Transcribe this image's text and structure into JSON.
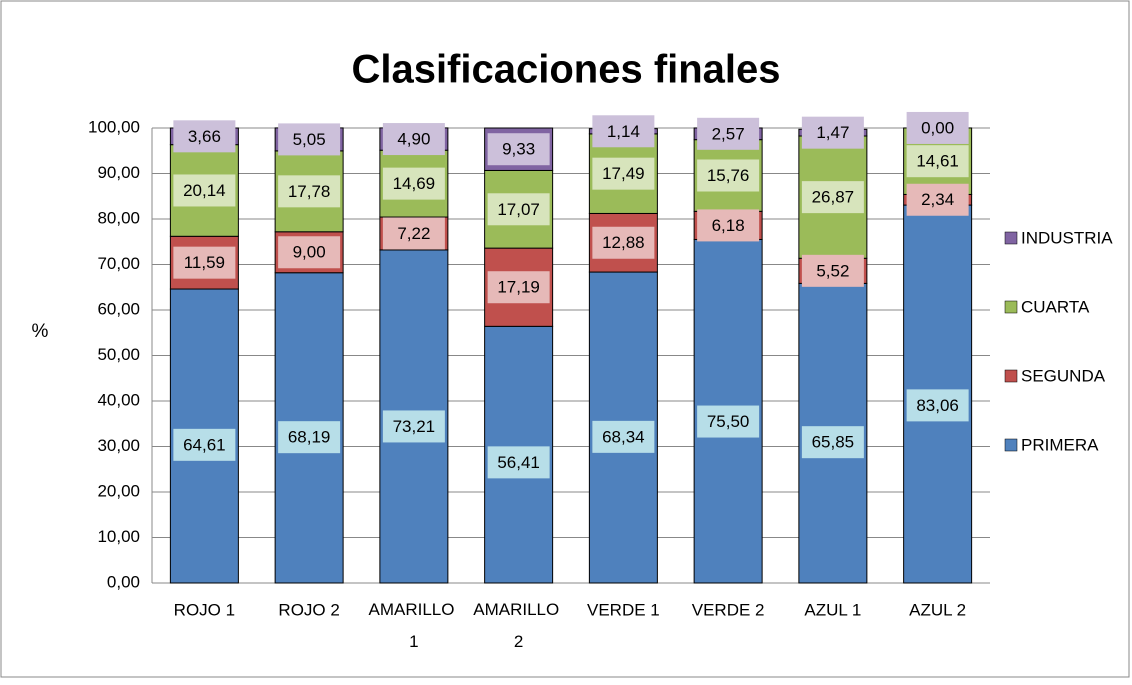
{
  "chart_data": {
    "type": "stacked_bar",
    "title": "Clasificaciones finales",
    "y_label": "%",
    "categories": [
      "ROJO 1",
      "ROJO 2",
      "AMARILLO 1",
      "AMARILLO 2",
      "VERDE 1",
      "VERDE 2",
      "AZUL 1",
      "AZUL 2"
    ],
    "series": [
      {
        "name": "PRIMERA",
        "color": "#4f81bd",
        "label_color": "#b7dee8",
        "values": [
          64.61,
          68.19,
          73.21,
          56.41,
          68.34,
          75.5,
          65.85,
          83.06
        ],
        "value_labels": [
          "64,61",
          "68,19",
          "73,21",
          "56,41",
          "68,34",
          "75,50",
          "65,85",
          "83,06"
        ]
      },
      {
        "name": "SEGUNDA",
        "color": "#c0504d",
        "label_color": "#e6b9b8",
        "values": [
          11.59,
          9.0,
          7.22,
          17.19,
          12.88,
          6.18,
          5.52,
          2.34
        ],
        "value_labels": [
          "11,59",
          "9,00",
          "7,22",
          "17,19",
          "12,88",
          "6,18",
          "5,52",
          "2,34"
        ]
      },
      {
        "name": "CUARTA",
        "color": "#9bbb59",
        "label_color": "#d7e4bc",
        "values": [
          20.14,
          17.78,
          14.69,
          17.07,
          17.49,
          15.76,
          26.87,
          14.61
        ],
        "value_labels": [
          "20,14",
          "17,78",
          "14,69",
          "17,07",
          "17,49",
          "15,76",
          "26,87",
          "14,61"
        ]
      },
      {
        "name": "INDUSTRIA",
        "color": "#8064a2",
        "label_color": "#ccc0da",
        "values": [
          3.66,
          5.05,
          4.9,
          9.33,
          1.14,
          2.57,
          1.47,
          0.0
        ],
        "value_labels": [
          "3,66",
          "5,05",
          "4,90",
          "9,33",
          "1,14",
          "2,57",
          "1,47",
          "0,00"
        ]
      }
    ],
    "ylim": [
      0,
      100
    ],
    "yticks": [
      {
        "value": 0,
        "label": "0,00"
      },
      {
        "value": 10,
        "label": "10,00"
      },
      {
        "value": 20,
        "label": "20,00"
      },
      {
        "value": 30,
        "label": "30,00"
      },
      {
        "value": 40,
        "label": "40,00"
      },
      {
        "value": 50,
        "label": "50,00"
      },
      {
        "value": 60,
        "label": "60,00"
      },
      {
        "value": 70,
        "label": "70,00"
      },
      {
        "value": 80,
        "label": "80,00"
      },
      {
        "value": 90,
        "label": "90,00"
      },
      {
        "value": 100,
        "label": "100,00"
      }
    ],
    "grid": true,
    "legend": "right"
  }
}
